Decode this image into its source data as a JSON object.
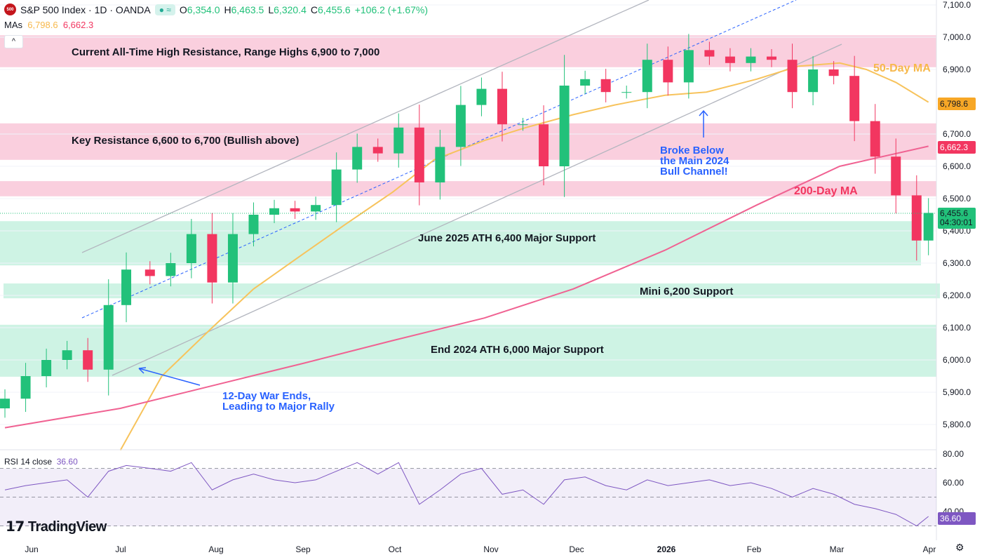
{
  "header": {
    "symbol_logo": "500",
    "title": "S&P 500 Index · 1D · OANDA",
    "open_label": "O",
    "open": "6,354.0",
    "high_label": "H",
    "high": "6,463.5",
    "low_label": "L",
    "low": "6,320.4",
    "close_label": "C",
    "close": "6,455.6",
    "change": "+106.2 (+1.67%)",
    "mas_label": "MAs",
    "ma50_value": "6,798.6",
    "ma200_value": "6,662.3",
    "collapse_icon": "chevron-up-icon"
  },
  "colors": {
    "up": "#22c17a",
    "down": "#f23660",
    "ma50": "#f7c35c",
    "ma200": "#f06292",
    "resistance_zone": "#f8bbd0",
    "support_zone": "#b9eed9",
    "annotation": "#2962ff",
    "rsi": "#7e57c2"
  },
  "annotations": {
    "zone1": "Current All-Time High Resistance, Range Highs 6,900 to 7,000",
    "zone2": "Key Resistance 6,600 to 6,700 (Bullish above)",
    "zone3": "June 2025 ATH 6,400 Major Support",
    "zone4": "Mini 6,200 Support",
    "zone5": "End 2024 ATH 6,000 Major Support",
    "war_line1": "12-Day War Ends,",
    "war_line2": "Leading to Major Rally",
    "broke_line1": "Broke Below",
    "broke_line2": "the Main 2024",
    "broke_line3": "Bull Channel!",
    "ma50_label": "50-Day MA",
    "ma200_label": "200-Day MA"
  },
  "price_axis": {
    "ticks": [
      "7,100.0",
      "7,000.0",
      "6,900.0",
      "6,700.0",
      "6,600.0",
      "6,500.0",
      "6,400.0",
      "6,300.0",
      "6,200.0",
      "6,100.0",
      "6,000.0",
      "5,900.0",
      "5,800.0"
    ],
    "ma50_tag": "6,798.6",
    "ma200_tag": "6,662.3",
    "last_price_tag": "6,455.6",
    "countdown": "04:30:01"
  },
  "time_axis": {
    "labels": [
      "Jun",
      "Jul",
      "Aug",
      "Sep",
      "Oct",
      "Nov",
      "Dec",
      "2026",
      "Feb",
      "Mar",
      "Apr"
    ]
  },
  "rsi": {
    "label": "RSI 14 close",
    "value": "36.60",
    "ticks": [
      "80.00",
      "60.00",
      "40.00"
    ]
  },
  "branding": "TradingView",
  "chart_data": {
    "type": "candlestick",
    "ylim": [
      5750,
      7100
    ],
    "zones": [
      {
        "kind": "resistance",
        "from": 6907,
        "to": 7006
      },
      {
        "kind": "resistance",
        "from": 6620,
        "to": 6733
      },
      {
        "kind": "resistance",
        "from": 6507,
        "to": 6554
      },
      {
        "kind": "support",
        "from": 6293,
        "to": 6430
      },
      {
        "kind": "support",
        "from": 6191,
        "to": 6237
      },
      {
        "kind": "support",
        "from": 5948,
        "to": 6109
      }
    ],
    "dates": [
      "2025-05-23",
      "2025-05-30",
      "2025-06-06",
      "2025-06-13",
      "2025-06-20",
      "2025-06-27",
      "2025-07-03",
      "2025-07-11",
      "2025-07-18",
      "2025-07-25",
      "2025-08-01",
      "2025-08-08",
      "2025-08-15",
      "2025-08-22",
      "2025-08-29",
      "2025-09-05",
      "2025-09-12",
      "2025-09-19",
      "2025-09-26",
      "2025-10-03",
      "2025-10-10",
      "2025-10-17",
      "2025-10-24",
      "2025-10-31",
      "2025-11-07",
      "2025-11-14",
      "2025-11-21",
      "2025-11-28",
      "2025-12-05",
      "2025-12-12",
      "2025-12-19",
      "2025-12-26",
      "2026-01-02",
      "2026-01-09",
      "2026-01-16",
      "2026-01-23",
      "2026-01-30",
      "2026-02-06",
      "2026-02-13",
      "2026-02-20",
      "2026-02-27",
      "2026-03-06",
      "2026-03-13",
      "2026-03-20",
      "2026-03-27",
      "2026-03-31"
    ],
    "close": [
      5880,
      5950,
      6000,
      6030,
      5970,
      6170,
      6280,
      6260,
      6300,
      6390,
      6240,
      6390,
      6450,
      6470,
      6460,
      6480,
      6590,
      6660,
      6640,
      6720,
      6550,
      6660,
      6790,
      6840,
      6730,
      6730,
      6600,
      6850,
      6870,
      6830,
      6830,
      6930,
      6860,
      6960,
      6940,
      6920,
      6940,
      6930,
      6830,
      6900,
      6880,
      6740,
      6630,
      6510,
      6370,
      6455.6
    ],
    "rsi": [
      55,
      58,
      60,
      62,
      50,
      68,
      72,
      70,
      68,
      74,
      55,
      62,
      66,
      62,
      60,
      62,
      68,
      74,
      66,
      74,
      45,
      55,
      66,
      70,
      52,
      55,
      45,
      62,
      64,
      58,
      55,
      62,
      58,
      60,
      62,
      58,
      60,
      56,
      50,
      56,
      52,
      45,
      42,
      38,
      30,
      36.6
    ],
    "ma50": {
      "dates": [
        "2025-07-01",
        "2025-07-15",
        "2025-08-01",
        "2025-08-15",
        "2025-09-01",
        "2025-09-15",
        "2025-10-01",
        "2025-10-15",
        "2025-11-01",
        "2025-11-15",
        "2025-12-01",
        "2025-12-15",
        "2026-01-01",
        "2026-01-15",
        "2026-02-01",
        "2026-02-15",
        "2026-03-01",
        "2026-03-10",
        "2026-03-20",
        "2026-03-31"
      ],
      "values": [
        5720,
        5950,
        6100,
        6220,
        6330,
        6420,
        6520,
        6620,
        6680,
        6720,
        6760,
        6790,
        6820,
        6830,
        6870,
        6910,
        6920,
        6900,
        6860,
        6798.6
      ]
    },
    "ma200": {
      "dates": [
        "2025-05-23",
        "2025-07-01",
        "2025-08-01",
        "2025-09-01",
        "2025-10-01",
        "2025-11-01",
        "2025-12-01",
        "2026-01-01",
        "2026-02-01",
        "2026-03-01",
        "2026-03-31"
      ],
      "values": [
        5790,
        5850,
        5920,
        5990,
        6060,
        6130,
        6220,
        6340,
        6480,
        6600,
        6662.3
      ]
    },
    "rsi_levels": [
      70,
      50,
      30
    ]
  }
}
